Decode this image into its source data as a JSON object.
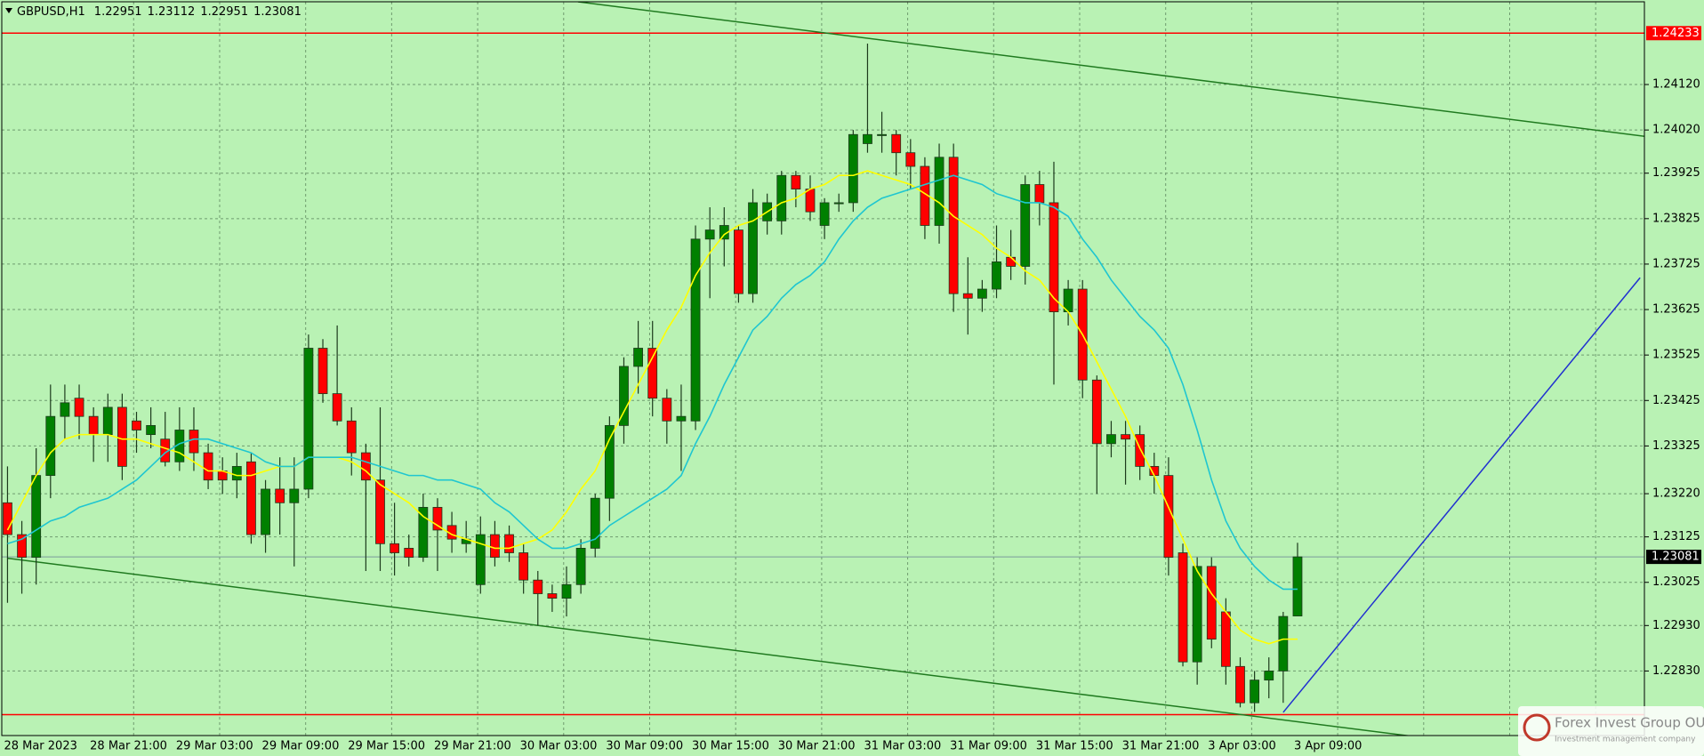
{
  "chart_data": {
    "type": "candlestick",
    "title": "GBPUSD,H1",
    "background": "#b9f2b4",
    "grid": true,
    "grid_color": "#6f9c6f",
    "up_color": "#008000",
    "down_color": "#ff0000",
    "xlim": [
      -0.4,
      114.2
    ],
    "ylim": [
      1.22688,
      1.24302
    ],
    "yticks": [
      {
        "value": 1.2412,
        "label": "1.24120"
      },
      {
        "value": 1.2402,
        "label": "1.24020"
      },
      1.23925,
      1.23825,
      1.23725,
      1.23625,
      1.23525,
      1.23425,
      1.23325,
      {
        "value": 1.2322,
        "label": "1.23220"
      },
      1.23125,
      1.23025,
      {
        "value": 1.2293,
        "label": "1.22930"
      },
      {
        "value": 1.2283,
        "label": "1.22830"
      }
    ],
    "categories": [
      "28 Mar 2023",
      null,
      null,
      null,
      null,
      null,
      "28 Mar 21:00",
      null,
      null,
      null,
      null,
      null,
      "29 Mar 03:00",
      null,
      null,
      null,
      null,
      null,
      "29 Mar 09:00",
      null,
      null,
      null,
      null,
      null,
      "29 Mar 15:00",
      null,
      null,
      null,
      null,
      null,
      "29 Mar 21:00",
      null,
      null,
      null,
      null,
      null,
      "30 Mar 03:00",
      null,
      null,
      null,
      null,
      null,
      "30 Mar 09:00",
      null,
      null,
      null,
      null,
      null,
      "30 Mar 15:00",
      null,
      null,
      null,
      null,
      null,
      "30 Mar 21:00",
      null,
      null,
      null,
      null,
      null,
      "31 Mar 03:00",
      null,
      null,
      null,
      null,
      null,
      "31 Mar 09:00",
      null,
      null,
      null,
      null,
      null,
      "31 Mar 15:00",
      null,
      null,
      null,
      null,
      null,
      "31 Mar 21:00",
      null,
      null,
      null,
      null,
      null,
      "3 Apr 03:00",
      null,
      null,
      null,
      null,
      null,
      "3 Apr 09:00"
    ],
    "open": [
      1.232,
      1.2313,
      1.2308,
      1.2326,
      1.2339,
      1.2343,
      1.2339,
      1.2335,
      1.2341,
      1.2338,
      1.2335,
      1.2334,
      1.2329,
      1.2336,
      1.2331,
      1.2327,
      1.2325,
      1.2329,
      1.2313,
      1.2323,
      1.232,
      1.2323,
      1.2354,
      1.2344,
      1.2338,
      1.2331,
      1.2325,
      1.2311,
      1.231,
      1.2308,
      1.2319,
      1.2315,
      1.2311,
      1.2302,
      1.2313,
      1.2313,
      1.2309,
      1.2303,
      1.23,
      1.2299,
      1.2302,
      1.231,
      1.2321,
      1.2337,
      1.235,
      1.2354,
      1.2343,
      1.2338,
      1.2338,
      1.2378,
      1.2378,
      1.238,
      1.2366,
      1.2382,
      1.2382,
      1.2392,
      1.2389,
      1.2381,
      1.2386,
      1.2386,
      1.2399,
      1.2401,
      1.2401,
      1.2397,
      1.2394,
      1.2381,
      1.2396,
      1.2366,
      1.2365,
      1.2367,
      1.2374,
      1.2372,
      1.239,
      1.2386,
      1.2362,
      1.2367,
      1.2347,
      1.2333,
      1.2335,
      1.2335,
      1.2328,
      1.2326,
      1.2309,
      1.2285,
      1.2306,
      1.2296,
      1.2284,
      1.2276,
      1.2281,
      1.2283,
      1.22951
    ],
    "high": [
      1.2328,
      1.2316,
      1.2332,
      1.2346,
      1.2346,
      1.2346,
      1.2341,
      1.2344,
      1.2344,
      1.234,
      1.2341,
      1.234,
      1.2341,
      1.2341,
      1.2333,
      1.233,
      1.2331,
      1.2331,
      1.2325,
      1.233,
      1.233,
      1.2357,
      1.2356,
      1.2359,
      1.2341,
      1.2333,
      1.2341,
      1.232,
      1.2313,
      1.2322,
      1.2321,
      1.2318,
      1.2316,
      1.2317,
      1.2316,
      1.2315,
      1.2311,
      1.2305,
      1.2302,
      1.2306,
      1.2312,
      1.2322,
      1.2339,
      1.2352,
      1.236,
      1.236,
      1.2345,
      1.2346,
      1.2381,
      1.2385,
      1.2385,
      1.2381,
      1.2389,
      1.2388,
      1.2393,
      1.2393,
      1.2392,
      1.2387,
      1.2388,
      1.2402,
      1.2421,
      1.2406,
      1.2402,
      1.24,
      1.2396,
      1.2399,
      1.2399,
      1.2374,
      1.2369,
      1.2381,
      1.238,
      1.2392,
      1.2393,
      1.2395,
      1.2369,
      1.2369,
      1.2348,
      1.2338,
      1.2338,
      1.2337,
      1.2331,
      1.233,
      1.2311,
      1.2308,
      1.2308,
      1.2299,
      1.2286,
      1.2283,
      1.2286,
      1.2296,
      1.23112
    ],
    "low": [
      1.2298,
      1.23,
      1.2302,
      1.2321,
      1.2334,
      1.2334,
      1.2329,
      1.2329,
      1.2325,
      1.2331,
      1.2332,
      1.2328,
      1.2327,
      1.2327,
      1.2323,
      1.2322,
      1.2321,
      1.2311,
      1.2309,
      1.2313,
      1.2306,
      1.2321,
      1.2342,
      1.2337,
      1.2326,
      1.2305,
      1.2305,
      1.2304,
      1.2306,
      1.2307,
      1.2305,
      1.2309,
      1.2309,
      1.23,
      1.2306,
      1.2307,
      1.23,
      1.2293,
      1.2296,
      1.2295,
      1.23,
      1.2308,
      1.2316,
      1.2333,
      1.2344,
      1.2339,
      1.2333,
      1.2327,
      1.2336,
      1.2365,
      1.2372,
      1.2364,
      1.2364,
      1.2379,
      1.2379,
      1.2385,
      1.2382,
      1.2378,
      1.2384,
      1.2384,
      1.2397,
      1.2397,
      1.2392,
      1.2389,
      1.2378,
      1.2377,
      1.2362,
      1.2357,
      1.2362,
      1.2365,
      1.2369,
      1.2368,
      1.2381,
      1.2346,
      1.2359,
      1.2343,
      1.2322,
      1.233,
      1.2324,
      1.2325,
      1.2322,
      1.2304,
      1.2284,
      1.228,
      1.2288,
      1.228,
      1.2275,
      1.2274,
      1.2277,
      1.2276,
      1.22951
    ],
    "close": [
      1.2313,
      1.2308,
      1.2326,
      1.2339,
      1.2342,
      1.2339,
      1.2335,
      1.2341,
      1.2328,
      1.2336,
      1.2337,
      1.2329,
      1.2336,
      1.2331,
      1.2325,
      1.2325,
      1.2328,
      1.2313,
      1.2323,
      1.232,
      1.2323,
      1.2354,
      1.2344,
      1.2338,
      1.2331,
      1.2325,
      1.2311,
      1.2309,
      1.2308,
      1.2319,
      1.2314,
      1.2312,
      1.2312,
      1.2313,
      1.2308,
      1.2309,
      1.2303,
      1.23,
      1.2299,
      1.2302,
      1.231,
      1.2321,
      1.2337,
      1.235,
      1.2354,
      1.2343,
      1.2338,
      1.2339,
      1.2378,
      1.238,
      1.2381,
      1.2366,
      1.2386,
      1.2386,
      1.2392,
      1.2389,
      1.2384,
      1.2386,
      1.2386,
      1.2401,
      1.2401,
      1.2401,
      1.2397,
      1.2394,
      1.2381,
      1.2396,
      1.2366,
      1.2365,
      1.2367,
      1.2373,
      1.2372,
      1.239,
      1.2386,
      1.2362,
      1.2367,
      1.2347,
      1.2333,
      1.2335,
      1.2334,
      1.2328,
      1.2326,
      1.2308,
      1.2285,
      1.2306,
      1.229,
      1.2284,
      1.2276,
      1.2281,
      1.2283,
      1.2295,
      1.23081
    ],
    "lines": [
      {
        "color": "#ffff00",
        "values": [
          1.2314,
          1.232,
          1.2326,
          1.2331,
          1.2334,
          1.2335,
          1.2335,
          1.2335,
          1.2334,
          1.2334,
          1.2333,
          1.2332,
          1.2331,
          1.2329,
          1.2327,
          1.2327,
          1.2326,
          1.2326,
          1.2327,
          1.2328,
          1.2328,
          1.233,
          1.233,
          1.233,
          1.2329,
          1.2327,
          1.2324,
          1.2322,
          1.232,
          1.2317,
          1.2315,
          1.2313,
          1.2312,
          1.2311,
          1.231,
          1.231,
          1.2311,
          1.2312,
          1.2314,
          1.2318,
          1.2323,
          1.2327,
          1.2334,
          1.234,
          1.2346,
          1.2352,
          1.2358,
          1.2363,
          1.237,
          1.2375,
          1.2379,
          1.2381,
          1.2382,
          1.2384,
          1.2386,
          1.2387,
          1.2389,
          1.239,
          1.2392,
          1.2392,
          1.2393,
          1.2392,
          1.2391,
          1.239,
          1.2388,
          1.2386,
          1.2383,
          1.2381,
          1.2379,
          1.2376,
          1.2374,
          1.2371,
          1.2369,
          1.2365,
          1.2362,
          1.2357,
          1.2351,
          1.2345,
          1.2339,
          1.2332,
          1.2326,
          1.2319,
          1.2312,
          1.2305,
          1.23,
          1.2296,
          1.2292,
          1.229,
          1.2289,
          1.229,
          1.229
        ]
      },
      {
        "color": "#1fc6d0",
        "values": [
          1.2311,
          1.2312,
          1.2314,
          1.2316,
          1.2317,
          1.2319,
          1.232,
          1.2321,
          1.2323,
          1.2325,
          1.2328,
          1.2331,
          1.2333,
          1.2334,
          1.2334,
          1.2333,
          1.2332,
          1.2331,
          1.2329,
          1.2328,
          1.2328,
          1.233,
          1.233,
          1.233,
          1.233,
          1.2329,
          1.2328,
          1.2327,
          1.2326,
          1.2326,
          1.2325,
          1.2325,
          1.2324,
          1.2323,
          1.232,
          1.2318,
          1.2315,
          1.2312,
          1.231,
          1.231,
          1.2311,
          1.2312,
          1.2315,
          1.2317,
          1.2319,
          1.2321,
          1.2323,
          1.2326,
          1.2333,
          1.2339,
          1.2346,
          1.2352,
          1.2358,
          1.2361,
          1.2365,
          1.2368,
          1.237,
          1.2373,
          1.2378,
          1.2382,
          1.2385,
          1.2387,
          1.2388,
          1.2389,
          1.239,
          1.2391,
          1.2392,
          1.2391,
          1.239,
          1.2388,
          1.2387,
          1.2386,
          1.2386,
          1.2385,
          1.2383,
          1.2378,
          1.2374,
          1.2369,
          1.2365,
          1.2361,
          1.2358,
          1.2354,
          1.2346,
          1.2336,
          1.2325,
          1.2316,
          1.231,
          1.2306,
          1.2303,
          1.2301,
          1.2301
        ]
      }
    ],
    "trendlines": [
      {
        "color": "#1f7a1f",
        "x": [
          39.8,
          114.5
        ],
        "y": [
          1.24302,
          1.24005
        ]
      },
      {
        "color": "#1f7a1f",
        "x": [
          0,
          98.1
        ],
        "y": [
          1.23078,
          1.22686
        ]
      },
      {
        "color": "#2030d0",
        "x": [
          89,
          113.9
        ],
        "y": [
          1.22739,
          1.23695
        ]
      }
    ],
    "levels": [
      {
        "value": 1.24233,
        "color": "#ff0000"
      },
      {
        "value": 1.22734,
        "color": "#ff0000"
      }
    ]
  },
  "logo": {
    "name": "Forex Invest Group OU",
    "tagline": "Investment management company"
  }
}
